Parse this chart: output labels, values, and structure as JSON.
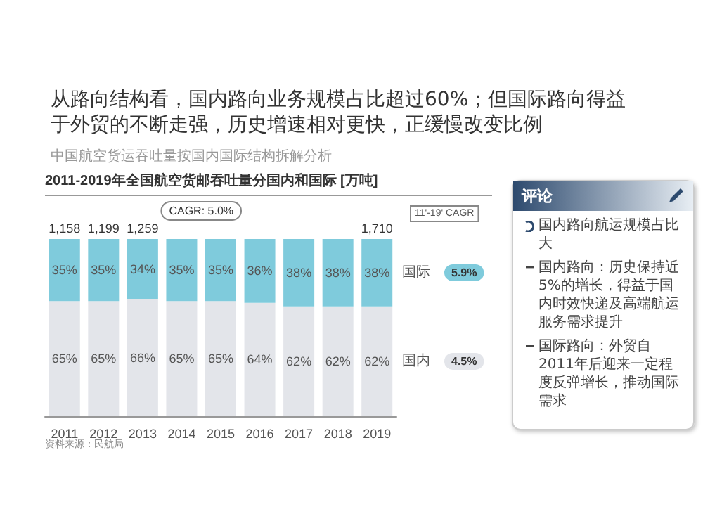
{
  "chart_data": [
    {
      "type": "bar",
      "title": "从路向结构看，国内路向业务规模占比超过60%；但国际路向得益于外贸的不断走强，历史增速相对更快，正缓慢改变比例",
      "subtitle": "中国航空货运吞吐量按国内国际结构拆解分析",
      "annotations": [
        "2011-2019年全国航空货邮吞吐量分国内和国际 [万吨]",
        "CAGR: 5.0%",
        "11'-19' CAGR",
        "5.9%",
        "4.5%",
        "资料来源：民航局",
        {
          "text": "1,158",
          "x": "2011",
          "y": 100
        },
        {
          "text": "1,199",
          "x": "2012",
          "y": 100
        },
        {
          "text": "1,259",
          "x": "2013",
          "y": 100
        },
        {
          "text": "1,710",
          "x": "2019",
          "y": 100
        }
      ],
      "categories": [
        "2011",
        "2012",
        "2013",
        "2014",
        "2015",
        "2016",
        "2017",
        "2018",
        "2019"
      ],
      "tick_labels": "x",
      "stacked": true,
      "legend": "right",
      "series": [
        {
          "name": "国内",
          "color": "#e3e5ea",
          "values": [
            65,
            65,
            66,
            65,
            65,
            64,
            62,
            62,
            62
          ],
          "value_labels": [
            "65%",
            "65%",
            "66%",
            "65%",
            "65%",
            "64%",
            "62%",
            "62%",
            "62%"
          ]
        },
        {
          "name": "国际",
          "color": "#7fcbdc",
          "values": [
            35,
            35,
            34,
            35,
            35,
            36,
            38,
            38,
            38
          ],
          "value_labels": [
            "35%",
            "35%",
            "34%",
            "35%",
            "35%",
            "36%",
            "38%",
            "38%",
            "38%"
          ]
        }
      ]
    },
    {
      "type": "other",
      "title": "评论",
      "annotations": [
        "国内路向航运规模占比大",
        "国内路向：历史保持近5%的增长，得益于国内时效快递及高端航运服务需求提升",
        "国际路向：外贸自2011年后迎来一定程度反弹增长，推动国际需求"
      ]
    }
  ]
}
